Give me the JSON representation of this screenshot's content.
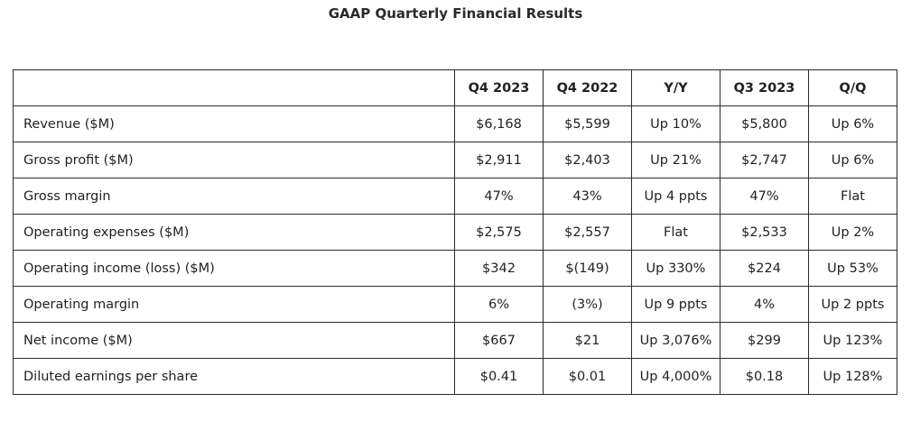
{
  "title": "GAAP Quarterly Financial Results",
  "table": {
    "headers": [
      "",
      "Q4 2023",
      "Q4 2022",
      "Y/Y",
      "Q3 2023",
      "Q/Q"
    ],
    "rows": [
      {
        "label": "Revenue ($M)",
        "values": [
          "$6,168",
          "$5,599",
          "Up 10%",
          "$5,800",
          "Up 6%"
        ]
      },
      {
        "label": "Gross profit ($M)",
        "values": [
          "$2,911",
          "$2,403",
          "Up 21%",
          "$2,747",
          "Up 6%"
        ]
      },
      {
        "label": "Gross margin",
        "values": [
          "47%",
          "43%",
          "Up 4 ppts",
          "47%",
          "Flat"
        ]
      },
      {
        "label": "Operating expenses ($M)",
        "values": [
          "$2,575",
          "$2,557",
          "Flat",
          "$2,533",
          "Up 2%"
        ]
      },
      {
        "label": "Operating income (loss) ($M)",
        "values": [
          "$342",
          "$(149)",
          "Up 330%",
          "$224",
          "Up 53%"
        ]
      },
      {
        "label": "Operating margin",
        "values": [
          "6%",
          "(3%)",
          "Up 9 ppts",
          "4%",
          "Up 2 ppts"
        ]
      },
      {
        "label": "Net income ($M)",
        "values": [
          "$667",
          "$21",
          "Up 3,076%",
          "$299",
          "Up 123%"
        ]
      },
      {
        "label": "Diluted earnings per share",
        "values": [
          "$0.41",
          "$0.01",
          "Up 4,000%",
          "$0.18",
          "Up 128%"
        ]
      }
    ]
  }
}
